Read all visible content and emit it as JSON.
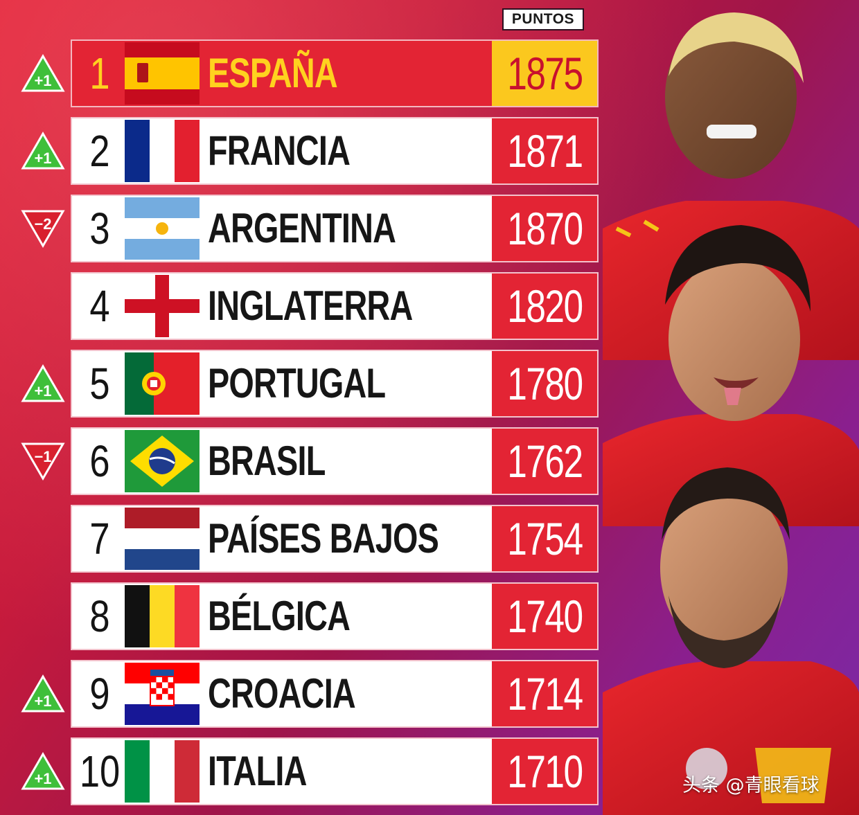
{
  "header": {
    "puntos_label": "PUNTOS"
  },
  "rows": [
    {
      "rank": "1",
      "country": "ESPAÑA",
      "points": "1875",
      "change": "+1",
      "flag_icon": "spain-flag-icon"
    },
    {
      "rank": "2",
      "country": "FRANCIA",
      "points": "1871",
      "change": "+1",
      "flag_icon": "france-flag-icon"
    },
    {
      "rank": "3",
      "country": "ARGENTINA",
      "points": "1870",
      "change": "-2",
      "flag_icon": "argentina-flag-icon"
    },
    {
      "rank": "4",
      "country": "INGLATERRA",
      "points": "1820",
      "change": "",
      "flag_icon": "england-flag-icon"
    },
    {
      "rank": "5",
      "country": "PORTUGAL",
      "points": "1780",
      "change": "+1",
      "flag_icon": "portugal-flag-icon"
    },
    {
      "rank": "6",
      "country": "BRASIL",
      "points": "1762",
      "change": "-1",
      "flag_icon": "brazil-flag-icon"
    },
    {
      "rank": "7",
      "country": "PAÍSES BAJOS",
      "points": "1754",
      "change": "",
      "flag_icon": "netherlands-flag-icon"
    },
    {
      "rank": "8",
      "country": "BÉLGICA",
      "points": "1740",
      "change": "",
      "flag_icon": "belgium-flag-icon"
    },
    {
      "rank": "9",
      "country": "CROACIA",
      "points": "1714",
      "change": "+1",
      "flag_icon": "croatia-flag-icon"
    },
    {
      "rank": "10",
      "country": "ITALIA",
      "points": "1710",
      "change": "+1",
      "flag_icon": "italy-flag-icon"
    }
  ],
  "colors": {
    "accent_red": "#e32434",
    "gold": "#fbc81e",
    "up_green": "#3fbf3a",
    "down_red": "#d8202e"
  },
  "watermark": "头条 @青眼看球"
}
